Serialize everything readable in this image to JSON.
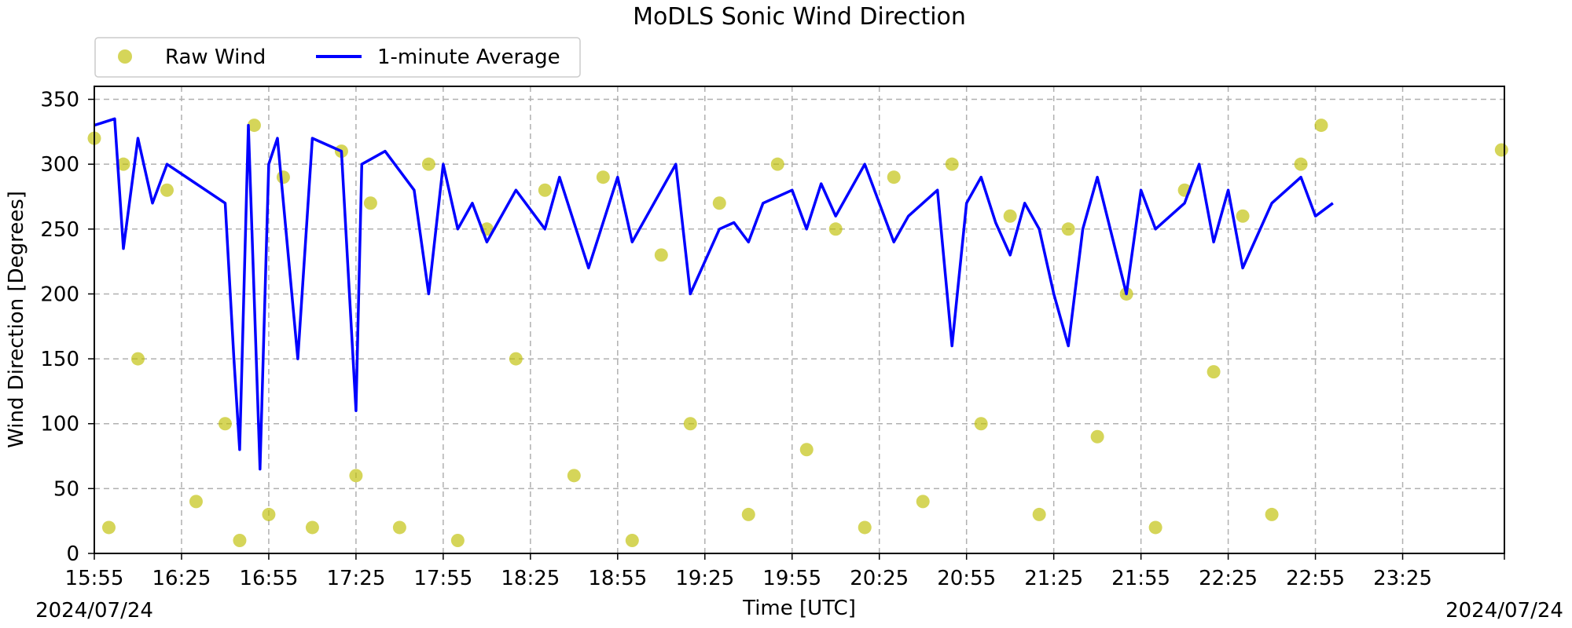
{
  "chart_data": {
    "type": "scatter",
    "title": "MoDLS Sonic Wind Direction",
    "xlabel": "Time [UTC]",
    "ylabel": "Wind Direction [Degrees]",
    "date_left": "2024/07/24",
    "date_right": "2024/07/24",
    "x_ticks": [
      "15:55",
      "16:25",
      "16:55",
      "17:25",
      "17:55",
      "18:25",
      "18:55",
      "19:25",
      "19:55",
      "20:25",
      "20:55",
      "21:25",
      "21:55",
      "22:25",
      "22:55",
      "23:25"
    ],
    "y_ticks": [
      0,
      50,
      100,
      150,
      200,
      250,
      300,
      350
    ],
    "xlim": [
      "15:55",
      "24:00"
    ],
    "ylim": [
      0,
      360
    ],
    "grid": true,
    "legend": {
      "placement": "top-left, above plot",
      "entries": [
        "Raw Wind",
        "1-minute Average"
      ]
    },
    "colors": {
      "raw": "#bfbf00",
      "average": "#0000ff"
    },
    "series": [
      {
        "name": "1-minute Average",
        "type": "line",
        "x": [
          "15:55",
          "16:02",
          "16:05",
          "16:10",
          "16:15",
          "16:20",
          "16:30",
          "16:40",
          "16:43",
          "16:45",
          "16:48",
          "16:52",
          "16:55",
          "16:58",
          "17:05",
          "17:10",
          "17:20",
          "17:25",
          "17:27",
          "17:35",
          "17:45",
          "17:50",
          "17:55",
          "18:00",
          "18:05",
          "18:10",
          "18:20",
          "18:30",
          "18:35",
          "18:45",
          "18:55",
          "19:00",
          "19:05",
          "19:15",
          "19:20",
          "19:30",
          "19:35",
          "19:40",
          "19:45",
          "19:55",
          "20:00",
          "20:05",
          "20:10",
          "20:20",
          "20:30",
          "20:35",
          "20:45",
          "20:50",
          "20:55",
          "21:00",
          "21:05",
          "21:10",
          "21:15",
          "21:20",
          "21:25",
          "21:30",
          "21:35",
          "21:40",
          "21:50",
          "21:55",
          "22:00",
          "22:10",
          "22:15",
          "22:20",
          "22:25",
          "22:30",
          "22:40",
          "22:50",
          "22:55",
          "23:01"
        ],
        "y": [
          330,
          335,
          235,
          320,
          270,
          300,
          285,
          270,
          150,
          80,
          330,
          65,
          300,
          320,
          150,
          320,
          310,
          110,
          300,
          310,
          280,
          200,
          300,
          250,
          270,
          240,
          280,
          250,
          290,
          220,
          290,
          240,
          260,
          300,
          200,
          250,
          255,
          240,
          270,
          280,
          250,
          285,
          260,
          300,
          240,
          260,
          280,
          160,
          270,
          290,
          255,
          230,
          270,
          250,
          200,
          160,
          250,
          290,
          200,
          280,
          250,
          270,
          300,
          240,
          280,
          220,
          270,
          290,
          260,
          270
        ]
      },
      {
        "name": "Raw Wind",
        "type": "scatter",
        "x": [
          "15:55",
          "16:00",
          "16:05",
          "16:10",
          "16:20",
          "16:30",
          "16:40",
          "16:45",
          "16:50",
          "16:55",
          "17:00",
          "17:10",
          "17:20",
          "17:25",
          "17:30",
          "17:40",
          "17:50",
          "18:00",
          "18:10",
          "18:20",
          "18:30",
          "18:40",
          "18:50",
          "19:00",
          "19:10",
          "19:20",
          "19:30",
          "19:40",
          "19:50",
          "20:00",
          "20:10",
          "20:20",
          "20:30",
          "20:40",
          "20:50",
          "21:00",
          "21:10",
          "21:20",
          "21:30",
          "21:40",
          "21:50",
          "22:00",
          "22:10",
          "22:20",
          "22:30",
          "22:40",
          "22:50",
          "22:57",
          "23:59"
        ],
        "y": [
          320,
          20,
          300,
          150,
          280,
          40,
          100,
          10,
          330,
          30,
          290,
          20,
          310,
          60,
          270,
          20,
          300,
          10,
          250,
          150,
          280,
          60,
          290,
          10,
          230,
          100,
          270,
          30,
          300,
          80,
          250,
          20,
          290,
          40,
          300,
          100,
          260,
          30,
          250,
          90,
          200,
          20,
          280,
          140,
          260,
          30,
          300,
          330,
          311
        ]
      }
    ]
  }
}
